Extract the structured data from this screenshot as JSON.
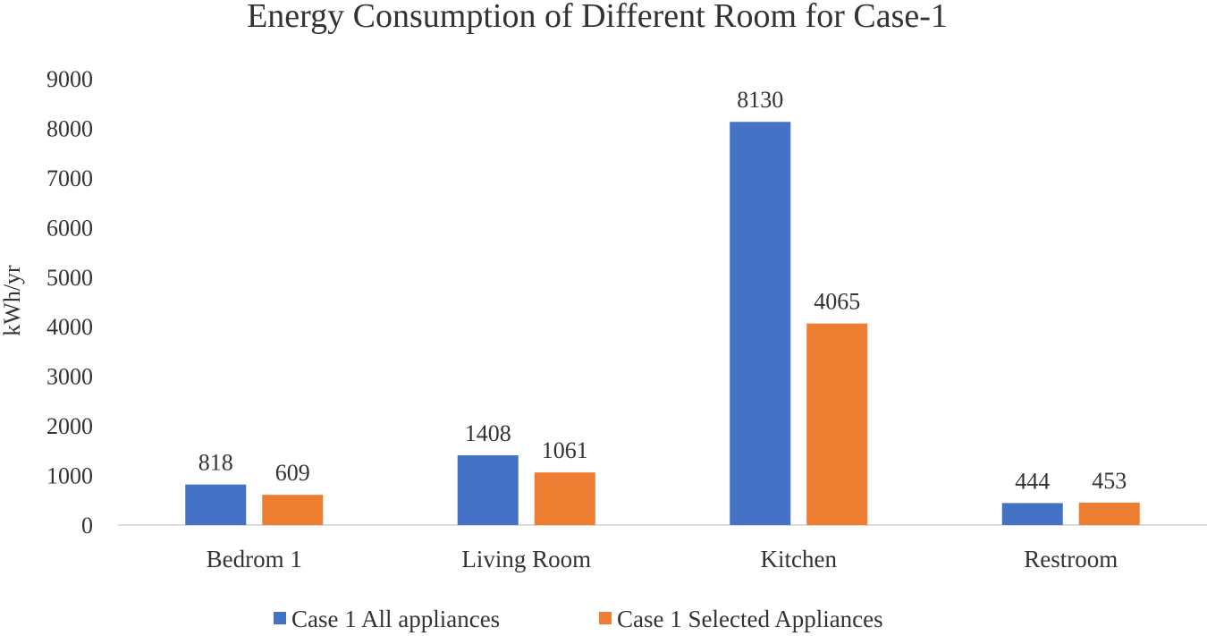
{
  "chart_data": {
    "type": "bar",
    "title": "Energy Consumption of Different Room for Case-1",
    "xlabel": "",
    "ylabel": "kWh/yr",
    "categories": [
      "Bedrom 1",
      "Living Room",
      "Kitchen",
      "Restroom"
    ],
    "series": [
      {
        "name": "Case 1 All appliances",
        "color": "#4472c4",
        "values": [
          818,
          1408,
          8130,
          444
        ]
      },
      {
        "name": "Case 1 Selected Appliances",
        "color": "#ed7d31",
        "values": [
          609,
          1061,
          4065,
          453
        ]
      }
    ],
    "ylim": [
      0,
      9000
    ],
    "yticks": [
      "0",
      "1000",
      "2000",
      "3000",
      "4000",
      "5000",
      "6000",
      "7000",
      "8000",
      "9000"
    ],
    "grid": false,
    "legend": "bottom"
  }
}
